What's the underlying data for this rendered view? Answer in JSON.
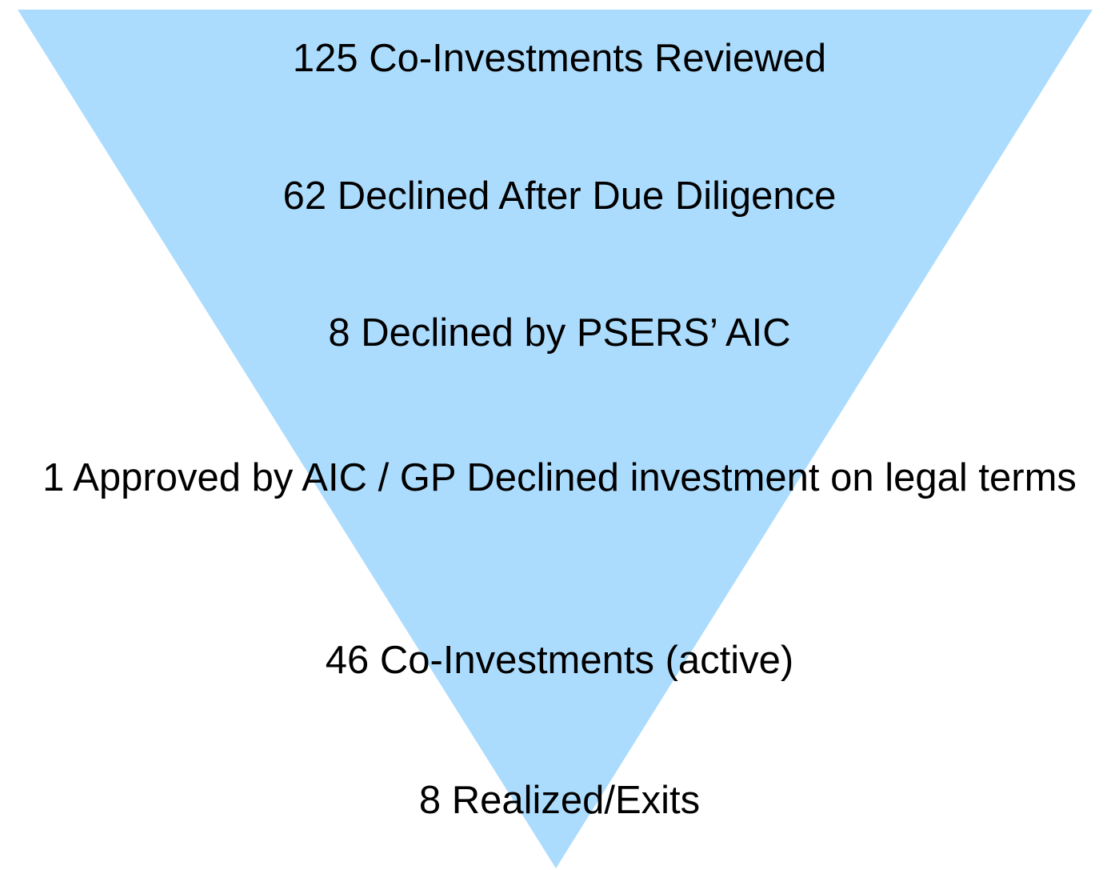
{
  "stages": [
    "125 Co-Investments Reviewed",
    "62 Declined After Due Diligence",
    "8 Declined by PSERS’ AIC",
    "1 Approved by AIC / GP Declined investment on legal terms",
    "46 Co-Investments (active)",
    "8 Realized/Exits"
  ]
}
